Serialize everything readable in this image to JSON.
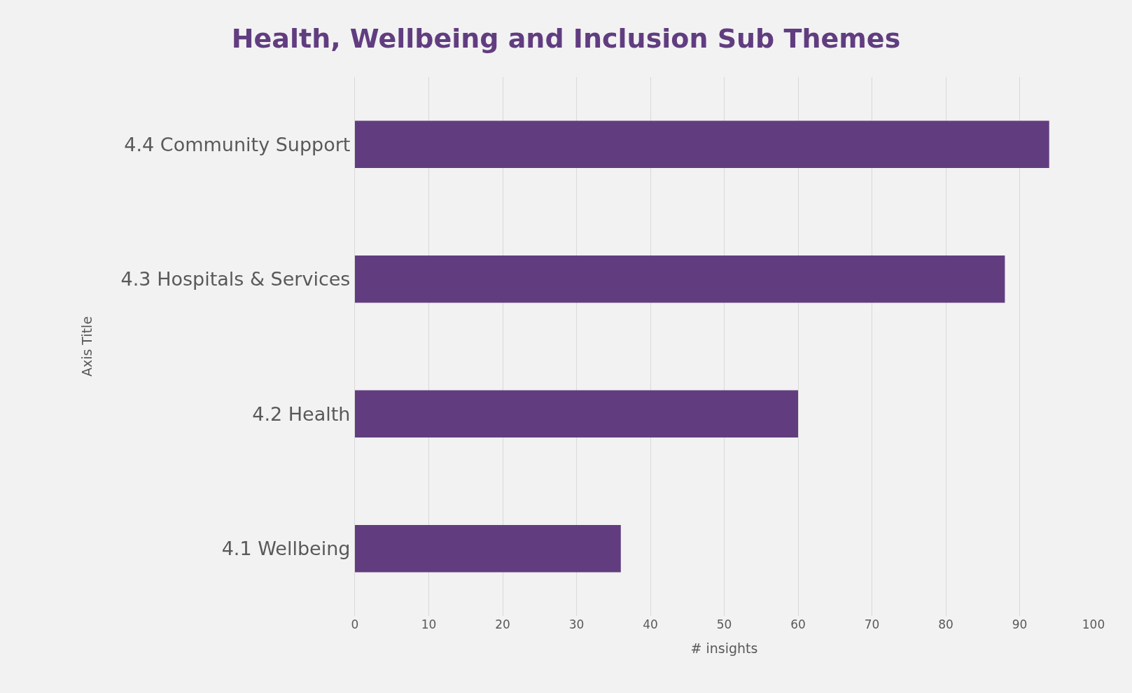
{
  "chart_data": {
    "type": "bar",
    "orientation": "horizontal",
    "title": "Health, Wellbeing and Inclusion Sub Themes",
    "xlabel": "# insights",
    "ylabel": "Axis Title",
    "categories": [
      "4.4 Community Support",
      "4.3 Hospitals & Services",
      "4.2 Health",
      "4.1 Wellbeing"
    ],
    "values": [
      94,
      88,
      60,
      36
    ],
    "color": "#613d80",
    "xlim": [
      0,
      100
    ],
    "xticks": [
      0,
      10,
      20,
      30,
      40,
      50,
      60,
      70,
      80,
      90,
      100
    ],
    "grid": "x",
    "legend": false
  }
}
